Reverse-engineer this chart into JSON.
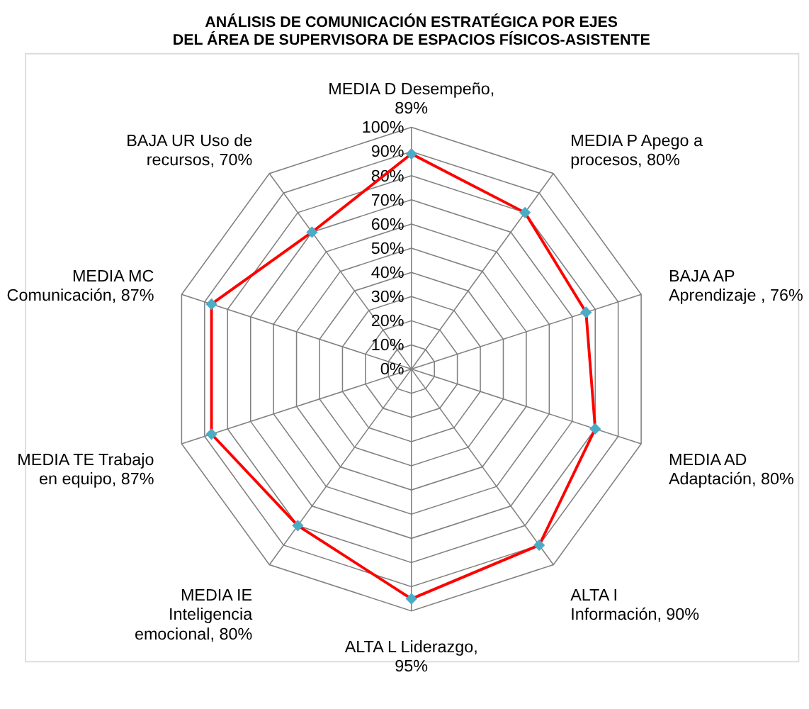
{
  "chart_data": {
    "type": "radar",
    "title": [
      "ANÁLISIS DE COMUNICACIÓN   ESTRATÉGICA POR EJES",
      "DEL ÁREA DE SUPERVISORA DE ESPACIOS FÍSICOS-ASISTENTE"
    ],
    "categories": [
      "MEDIA D Desempeño, 89%",
      "MEDIA P Apego a procesos, 80%",
      "BAJA AP Aprendizaje , 76%",
      "MEDIA AD Adaptación, 80%",
      "ALTA I Información, 90%",
      "ALTA L Liderazgo, 95%",
      "MEDIA IE Inteligencia emocional, 80%",
      "MEDIA TE Trabajo en equipo, 87%",
      "MEDIA MC Comunicación, 87%",
      "BAJA UR Uso de recursos, 70%"
    ],
    "series": [
      {
        "color": "#ff0000",
        "values": [
          89,
          80,
          76,
          80,
          90,
          95,
          80,
          87,
          87,
          70
        ]
      }
    ],
    "ylim": [
      0,
      100
    ],
    "yticks": [
      {
        "value": 0,
        "label": "0%"
      },
      {
        "value": 10,
        "label": "10%"
      },
      {
        "value": 20,
        "label": "20%"
      },
      {
        "value": 30,
        "label": "30%"
      },
      {
        "value": 40,
        "label": "40%"
      },
      {
        "value": 50,
        "label": "50%"
      },
      {
        "value": 60,
        "label": "60%"
      },
      {
        "value": 70,
        "label": "70%"
      },
      {
        "value": 80,
        "label": "80%"
      },
      {
        "value": 90,
        "label": "90%"
      },
      {
        "value": 100,
        "label": "100%"
      }
    ],
    "marker": "diamond",
    "grid": true
  }
}
